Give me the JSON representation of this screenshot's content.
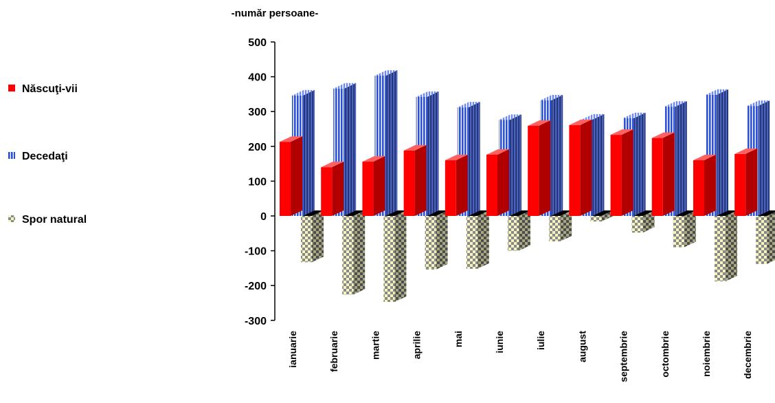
{
  "chart_data": {
    "type": "bar",
    "style": "3d-column",
    "unit_label": "-număr persoane-",
    "categories": [
      "ianuarie",
      "februarie",
      "martie",
      "aprilie",
      "mai",
      "iunie",
      "iulie",
      "august",
      "septembrie",
      "octombrie",
      "noiembrie",
      "decembrie"
    ],
    "series": [
      {
        "name": "Născuţi-vii",
        "color": "#ff0000",
        "pattern": "solid",
        "values": [
          213,
          140,
          156,
          188,
          160,
          176,
          259,
          261,
          233,
          224,
          160,
          178
        ]
      },
      {
        "name": "Decedaţi",
        "color": "#3355dd",
        "pattern": "vertical-stripes",
        "values": [
          346,
          366,
          403,
          342,
          312,
          276,
          332,
          277,
          281,
          314,
          348,
          316
        ]
      },
      {
        "name": "Spor natural",
        "color": "#e8e8b0",
        "pattern": "checkered",
        "values": [
          -133,
          -226,
          -247,
          -154,
          -152,
          -100,
          -73,
          -16,
          -48,
          -90,
          -188,
          -138
        ]
      }
    ],
    "yticks": [
      500,
      400,
      300,
      200,
      100,
      0,
      -100,
      -200,
      -300
    ],
    "ylim": [
      -300,
      500
    ],
    "legend_position": "left",
    "grid": false
  }
}
